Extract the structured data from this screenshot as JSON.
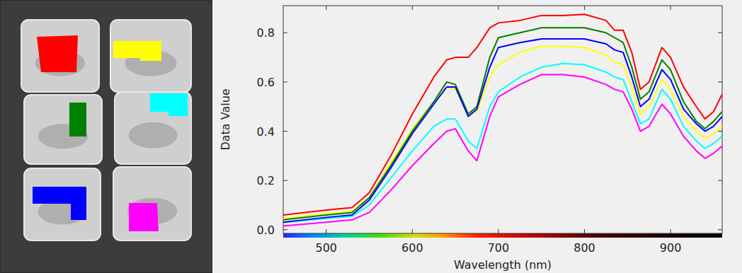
{
  "chart_data": {
    "type": "line",
    "x_label": "Wavelength (nm)",
    "y_label": "Data Value",
    "x": [
      450,
      500,
      530,
      550,
      575,
      600,
      625,
      640,
      650,
      665,
      675,
      690,
      700,
      725,
      750,
      775,
      800,
      825,
      835,
      845,
      855,
      865,
      875,
      890,
      900,
      915,
      930,
      940,
      950,
      960
    ],
    "series": [
      {
        "color": "#ff0000",
        "values": [
          0.06,
          0.08,
          0.09,
          0.15,
          0.3,
          0.47,
          0.62,
          0.69,
          0.7,
          0.7,
          0.74,
          0.82,
          0.84,
          0.85,
          0.87,
          0.87,
          0.875,
          0.85,
          0.81,
          0.81,
          0.72,
          0.57,
          0.6,
          0.74,
          0.7,
          0.58,
          0.5,
          0.45,
          0.48,
          0.55
        ]
      },
      {
        "color": "#ffff00",
        "values": [
          0.045,
          0.065,
          0.075,
          0.13,
          0.27,
          0.41,
          0.52,
          0.58,
          0.57,
          0.47,
          0.48,
          0.62,
          0.67,
          0.72,
          0.745,
          0.745,
          0.74,
          0.71,
          0.68,
          0.67,
          0.58,
          0.47,
          0.5,
          0.61,
          0.57,
          0.46,
          0.4,
          0.37,
          0.39,
          0.42
        ]
      },
      {
        "color": "#008000",
        "values": [
          0.04,
          0.06,
          0.07,
          0.13,
          0.26,
          0.4,
          0.52,
          0.6,
          0.59,
          0.47,
          0.5,
          0.7,
          0.78,
          0.8,
          0.82,
          0.82,
          0.82,
          0.8,
          0.78,
          0.76,
          0.66,
          0.53,
          0.56,
          0.69,
          0.65,
          0.52,
          0.44,
          0.41,
          0.44,
          0.48
        ]
      },
      {
        "color": "#00ffff",
        "values": [
          0.03,
          0.045,
          0.055,
          0.1,
          0.21,
          0.32,
          0.42,
          0.45,
          0.45,
          0.36,
          0.33,
          0.5,
          0.56,
          0.62,
          0.66,
          0.675,
          0.67,
          0.64,
          0.62,
          0.61,
          0.52,
          0.43,
          0.45,
          0.57,
          0.53,
          0.42,
          0.36,
          0.33,
          0.35,
          0.38
        ]
      },
      {
        "color": "#0000ff",
        "values": [
          0.03,
          0.05,
          0.06,
          0.12,
          0.25,
          0.39,
          0.51,
          0.58,
          0.58,
          0.46,
          0.49,
          0.66,
          0.74,
          0.76,
          0.775,
          0.775,
          0.775,
          0.755,
          0.73,
          0.72,
          0.62,
          0.5,
          0.53,
          0.65,
          0.61,
          0.49,
          0.43,
          0.4,
          0.42,
          0.46
        ]
      },
      {
        "color": "#ff00ff",
        "values": [
          0.015,
          0.03,
          0.04,
          0.07,
          0.16,
          0.26,
          0.35,
          0.4,
          0.41,
          0.32,
          0.28,
          0.46,
          0.54,
          0.59,
          0.63,
          0.63,
          0.62,
          0.59,
          0.57,
          0.56,
          0.49,
          0.4,
          0.42,
          0.51,
          0.47,
          0.38,
          0.32,
          0.29,
          0.31,
          0.34
        ]
      }
    ],
    "xlim": [
      450,
      960
    ],
    "ylim": [
      -0.015,
      0.91
    ],
    "xticks": [
      500,
      600,
      700,
      800,
      900
    ],
    "yticks": [
      {
        "value": 0,
        "label": "0.0"
      },
      0.2,
      0.4,
      0.6,
      0.8
    ],
    "grid": false
  }
}
